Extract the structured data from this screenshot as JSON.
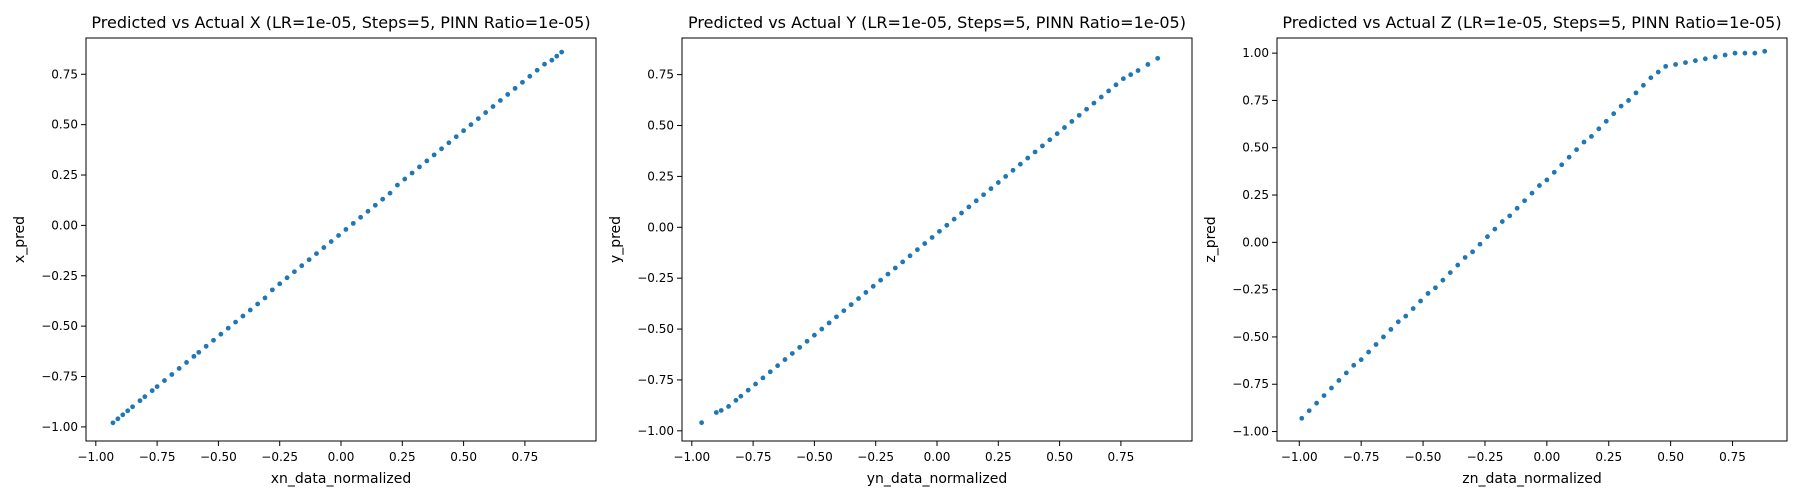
{
  "figure": {
    "background": "#ffffff"
  },
  "chart_data": [
    {
      "type": "scatter",
      "title": "Predicted vs Actual X (LR=1e-05, Steps=5, PINN Ratio=1e-05)",
      "xlabel": "xn_data_normalized",
      "ylabel": "x_pred",
      "xlim": [
        -1.04,
        1.04
      ],
      "ylim": [
        -1.07,
        0.93
      ],
      "xticks": [
        -1.0,
        -0.75,
        -0.5,
        -0.25,
        0.0,
        0.25,
        0.5,
        0.75
      ],
      "xtick_labels": [
        "−1.00",
        "−0.75",
        "−0.50",
        "−0.25",
        "0.00",
        "0.25",
        "0.50",
        "0.75"
      ],
      "yticks": [
        -1.0,
        -0.75,
        -0.5,
        -0.25,
        0.0,
        0.25,
        0.5,
        0.75
      ],
      "ytick_labels": [
        "−1.00",
        "−0.75",
        "−0.50",
        "−0.25",
        "0.00",
        "0.25",
        "0.50",
        "0.75"
      ],
      "series": [
        {
          "color": "#1f77b4",
          "points": [
            [
              -0.93,
              -0.98
            ],
            [
              -0.91,
              -0.96
            ],
            [
              -0.89,
              -0.94
            ],
            [
              -0.87,
              -0.92
            ],
            [
              -0.85,
              -0.9
            ],
            [
              -0.82,
              -0.87
            ],
            [
              -0.8,
              -0.85
            ],
            [
              -0.77,
              -0.82
            ],
            [
              -0.75,
              -0.8
            ],
            [
              -0.72,
              -0.77
            ],
            [
              -0.69,
              -0.74
            ],
            [
              -0.66,
              -0.71
            ],
            [
              -0.63,
              -0.68
            ],
            [
              -0.6,
              -0.65
            ],
            [
              -0.58,
              -0.63
            ],
            [
              -0.55,
              -0.6
            ],
            [
              -0.52,
              -0.57
            ],
            [
              -0.49,
              -0.54
            ],
            [
              -0.46,
              -0.51
            ],
            [
              -0.43,
              -0.48
            ],
            [
              -0.4,
              -0.45
            ],
            [
              -0.37,
              -0.42
            ],
            [
              -0.34,
              -0.39
            ],
            [
              -0.31,
              -0.36
            ],
            [
              -0.28,
              -0.32
            ],
            [
              -0.25,
              -0.29
            ],
            [
              -0.22,
              -0.26
            ],
            [
              -0.19,
              -0.23
            ],
            [
              -0.16,
              -0.2
            ],
            [
              -0.13,
              -0.17
            ],
            [
              -0.1,
              -0.14
            ],
            [
              -0.07,
              -0.11
            ],
            [
              -0.04,
              -0.08
            ],
            [
              -0.01,
              -0.05
            ],
            [
              0.02,
              -0.02
            ],
            [
              0.05,
              0.01
            ],
            [
              0.08,
              0.04
            ],
            [
              0.11,
              0.07
            ],
            [
              0.14,
              0.1
            ],
            [
              0.17,
              0.13
            ],
            [
              0.2,
              0.16
            ],
            [
              0.23,
              0.2
            ],
            [
              0.26,
              0.23
            ],
            [
              0.29,
              0.26
            ],
            [
              0.32,
              0.29
            ],
            [
              0.35,
              0.32
            ],
            [
              0.38,
              0.35
            ],
            [
              0.41,
              0.38
            ],
            [
              0.44,
              0.41
            ],
            [
              0.47,
              0.44
            ],
            [
              0.5,
              0.47
            ],
            [
              0.53,
              0.5
            ],
            [
              0.56,
              0.53
            ],
            [
              0.59,
              0.56
            ],
            [
              0.62,
              0.59
            ],
            [
              0.65,
              0.62
            ],
            [
              0.68,
              0.65
            ],
            [
              0.71,
              0.68
            ],
            [
              0.74,
              0.71
            ],
            [
              0.77,
              0.74
            ],
            [
              0.8,
              0.77
            ],
            [
              0.83,
              0.8
            ],
            [
              0.86,
              0.82
            ],
            [
              0.88,
              0.84
            ],
            [
              0.9,
              0.86
            ]
          ]
        }
      ]
    },
    {
      "type": "scatter",
      "title": "Predicted vs Actual Y (LR=1e-05, Steps=5, PINN Ratio=1e-05)",
      "xlabel": "yn_data_normalized",
      "ylabel": "y_pred",
      "xlim": [
        -1.04,
        1.04
      ],
      "ylim": [
        -1.05,
        0.93
      ],
      "xticks": [
        -1.0,
        -0.75,
        -0.5,
        -0.25,
        0.0,
        0.25,
        0.5,
        0.75
      ],
      "xtick_labels": [
        "−1.00",
        "−0.75",
        "−0.50",
        "−0.25",
        "0.00",
        "0.25",
        "0.50",
        "0.75"
      ],
      "yticks": [
        -1.0,
        -0.75,
        -0.5,
        -0.25,
        0.0,
        0.25,
        0.5,
        0.75
      ],
      "ytick_labels": [
        "−1.00",
        "−0.75",
        "−0.50",
        "−0.25",
        "0.00",
        "0.25",
        "0.50",
        "0.75"
      ],
      "series": [
        {
          "color": "#1f77b4",
          "points": [
            [
              -0.96,
              -0.96
            ],
            [
              -0.9,
              -0.91
            ],
            [
              -0.88,
              -0.9
            ],
            [
              -0.85,
              -0.88
            ],
            [
              -0.82,
              -0.85
            ],
            [
              -0.8,
              -0.83
            ],
            [
              -0.77,
              -0.8
            ],
            [
              -0.74,
              -0.77
            ],
            [
              -0.71,
              -0.74
            ],
            [
              -0.68,
              -0.71
            ],
            [
              -0.65,
              -0.68
            ],
            [
              -0.62,
              -0.65
            ],
            [
              -0.59,
              -0.62
            ],
            [
              -0.56,
              -0.59
            ],
            [
              -0.53,
              -0.56
            ],
            [
              -0.5,
              -0.53
            ],
            [
              -0.47,
              -0.5
            ],
            [
              -0.44,
              -0.47
            ],
            [
              -0.41,
              -0.44
            ],
            [
              -0.38,
              -0.41
            ],
            [
              -0.35,
              -0.38
            ],
            [
              -0.32,
              -0.35
            ],
            [
              -0.29,
              -0.32
            ],
            [
              -0.26,
              -0.29
            ],
            [
              -0.23,
              -0.26
            ],
            [
              -0.2,
              -0.23
            ],
            [
              -0.17,
              -0.2
            ],
            [
              -0.14,
              -0.17
            ],
            [
              -0.11,
              -0.14
            ],
            [
              -0.08,
              -0.11
            ],
            [
              -0.05,
              -0.08
            ],
            [
              -0.02,
              -0.05
            ],
            [
              0.01,
              -0.02
            ],
            [
              0.04,
              0.01
            ],
            [
              0.07,
              0.04
            ],
            [
              0.1,
              0.07
            ],
            [
              0.13,
              0.1
            ],
            [
              0.16,
              0.13
            ],
            [
              0.19,
              0.16
            ],
            [
              0.22,
              0.19
            ],
            [
              0.25,
              0.22
            ],
            [
              0.28,
              0.25
            ],
            [
              0.31,
              0.28
            ],
            [
              0.34,
              0.31
            ],
            [
              0.37,
              0.34
            ],
            [
              0.4,
              0.37
            ],
            [
              0.43,
              0.4
            ],
            [
              0.46,
              0.43
            ],
            [
              0.49,
              0.46
            ],
            [
              0.52,
              0.49
            ],
            [
              0.55,
              0.52
            ],
            [
              0.58,
              0.55
            ],
            [
              0.61,
              0.58
            ],
            [
              0.64,
              0.61
            ],
            [
              0.67,
              0.64
            ],
            [
              0.7,
              0.67
            ],
            [
              0.73,
              0.7
            ],
            [
              0.76,
              0.73
            ],
            [
              0.79,
              0.75
            ],
            [
              0.82,
              0.77
            ],
            [
              0.86,
              0.8
            ],
            [
              0.9,
              0.83
            ]
          ]
        }
      ]
    },
    {
      "type": "scatter",
      "title": "Predicted vs Actual Z (LR=1e-05, Steps=5, PINN Ratio=1e-05)",
      "xlabel": "zn_data_normalized",
      "ylabel": "z_pred",
      "xlim": [
        -1.09,
        0.97
      ],
      "ylim": [
        -1.05,
        1.08
      ],
      "xticks": [
        -1.0,
        -0.75,
        -0.5,
        -0.25,
        0.0,
        0.25,
        0.5,
        0.75
      ],
      "xtick_labels": [
        "−1.00",
        "−0.75",
        "−0.50",
        "−0.25",
        "0.00",
        "0.25",
        "0.50",
        "0.75"
      ],
      "yticks": [
        -1.0,
        -0.75,
        -0.5,
        -0.25,
        0.0,
        0.25,
        0.5,
        0.75,
        1.0
      ],
      "ytick_labels": [
        "−1.00",
        "−0.75",
        "−0.50",
        "−0.25",
        "0.00",
        "0.25",
        "0.50",
        "0.75",
        "1.00"
      ],
      "series": [
        {
          "color": "#1f77b4",
          "points": [
            [
              -0.99,
              -0.93
            ],
            [
              -0.96,
              -0.89
            ],
            [
              -0.93,
              -0.85
            ],
            [
              -0.9,
              -0.81
            ],
            [
              -0.87,
              -0.77
            ],
            [
              -0.84,
              -0.73
            ],
            [
              -0.81,
              -0.69
            ],
            [
              -0.78,
              -0.65
            ],
            [
              -0.75,
              -0.62
            ],
            [
              -0.72,
              -0.58
            ],
            [
              -0.69,
              -0.54
            ],
            [
              -0.66,
              -0.5
            ],
            [
              -0.63,
              -0.46
            ],
            [
              -0.6,
              -0.42
            ],
            [
              -0.57,
              -0.39
            ],
            [
              -0.54,
              -0.35
            ],
            [
              -0.51,
              -0.31
            ],
            [
              -0.48,
              -0.27
            ],
            [
              -0.45,
              -0.24
            ],
            [
              -0.42,
              -0.2
            ],
            [
              -0.39,
              -0.16
            ],
            [
              -0.36,
              -0.12
            ],
            [
              -0.33,
              -0.08
            ],
            [
              -0.3,
              -0.05
            ],
            [
              -0.27,
              -0.01
            ],
            [
              -0.24,
              0.03
            ],
            [
              -0.21,
              0.07
            ],
            [
              -0.18,
              0.11
            ],
            [
              -0.15,
              0.14
            ],
            [
              -0.12,
              0.18
            ],
            [
              -0.09,
              0.22
            ],
            [
              -0.06,
              0.26
            ],
            [
              -0.03,
              0.3
            ],
            [
              0.0,
              0.33
            ],
            [
              0.03,
              0.37
            ],
            [
              0.06,
              0.41
            ],
            [
              0.09,
              0.45
            ],
            [
              0.12,
              0.49
            ],
            [
              0.15,
              0.53
            ],
            [
              0.18,
              0.56
            ],
            [
              0.21,
              0.6
            ],
            [
              0.24,
              0.64
            ],
            [
              0.27,
              0.68
            ],
            [
              0.3,
              0.72
            ],
            [
              0.33,
              0.75
            ],
            [
              0.36,
              0.79
            ],
            [
              0.39,
              0.83
            ],
            [
              0.42,
              0.87
            ],
            [
              0.45,
              0.9
            ],
            [
              0.48,
              0.93
            ],
            [
              0.52,
              0.94
            ],
            [
              0.56,
              0.95
            ],
            [
              0.6,
              0.96
            ],
            [
              0.64,
              0.97
            ],
            [
              0.68,
              0.98
            ],
            [
              0.72,
              0.99
            ],
            [
              0.76,
              1.0
            ],
            [
              0.8,
              1.0
            ],
            [
              0.84,
              1.0
            ],
            [
              0.88,
              1.01
            ]
          ]
        }
      ]
    }
  ]
}
